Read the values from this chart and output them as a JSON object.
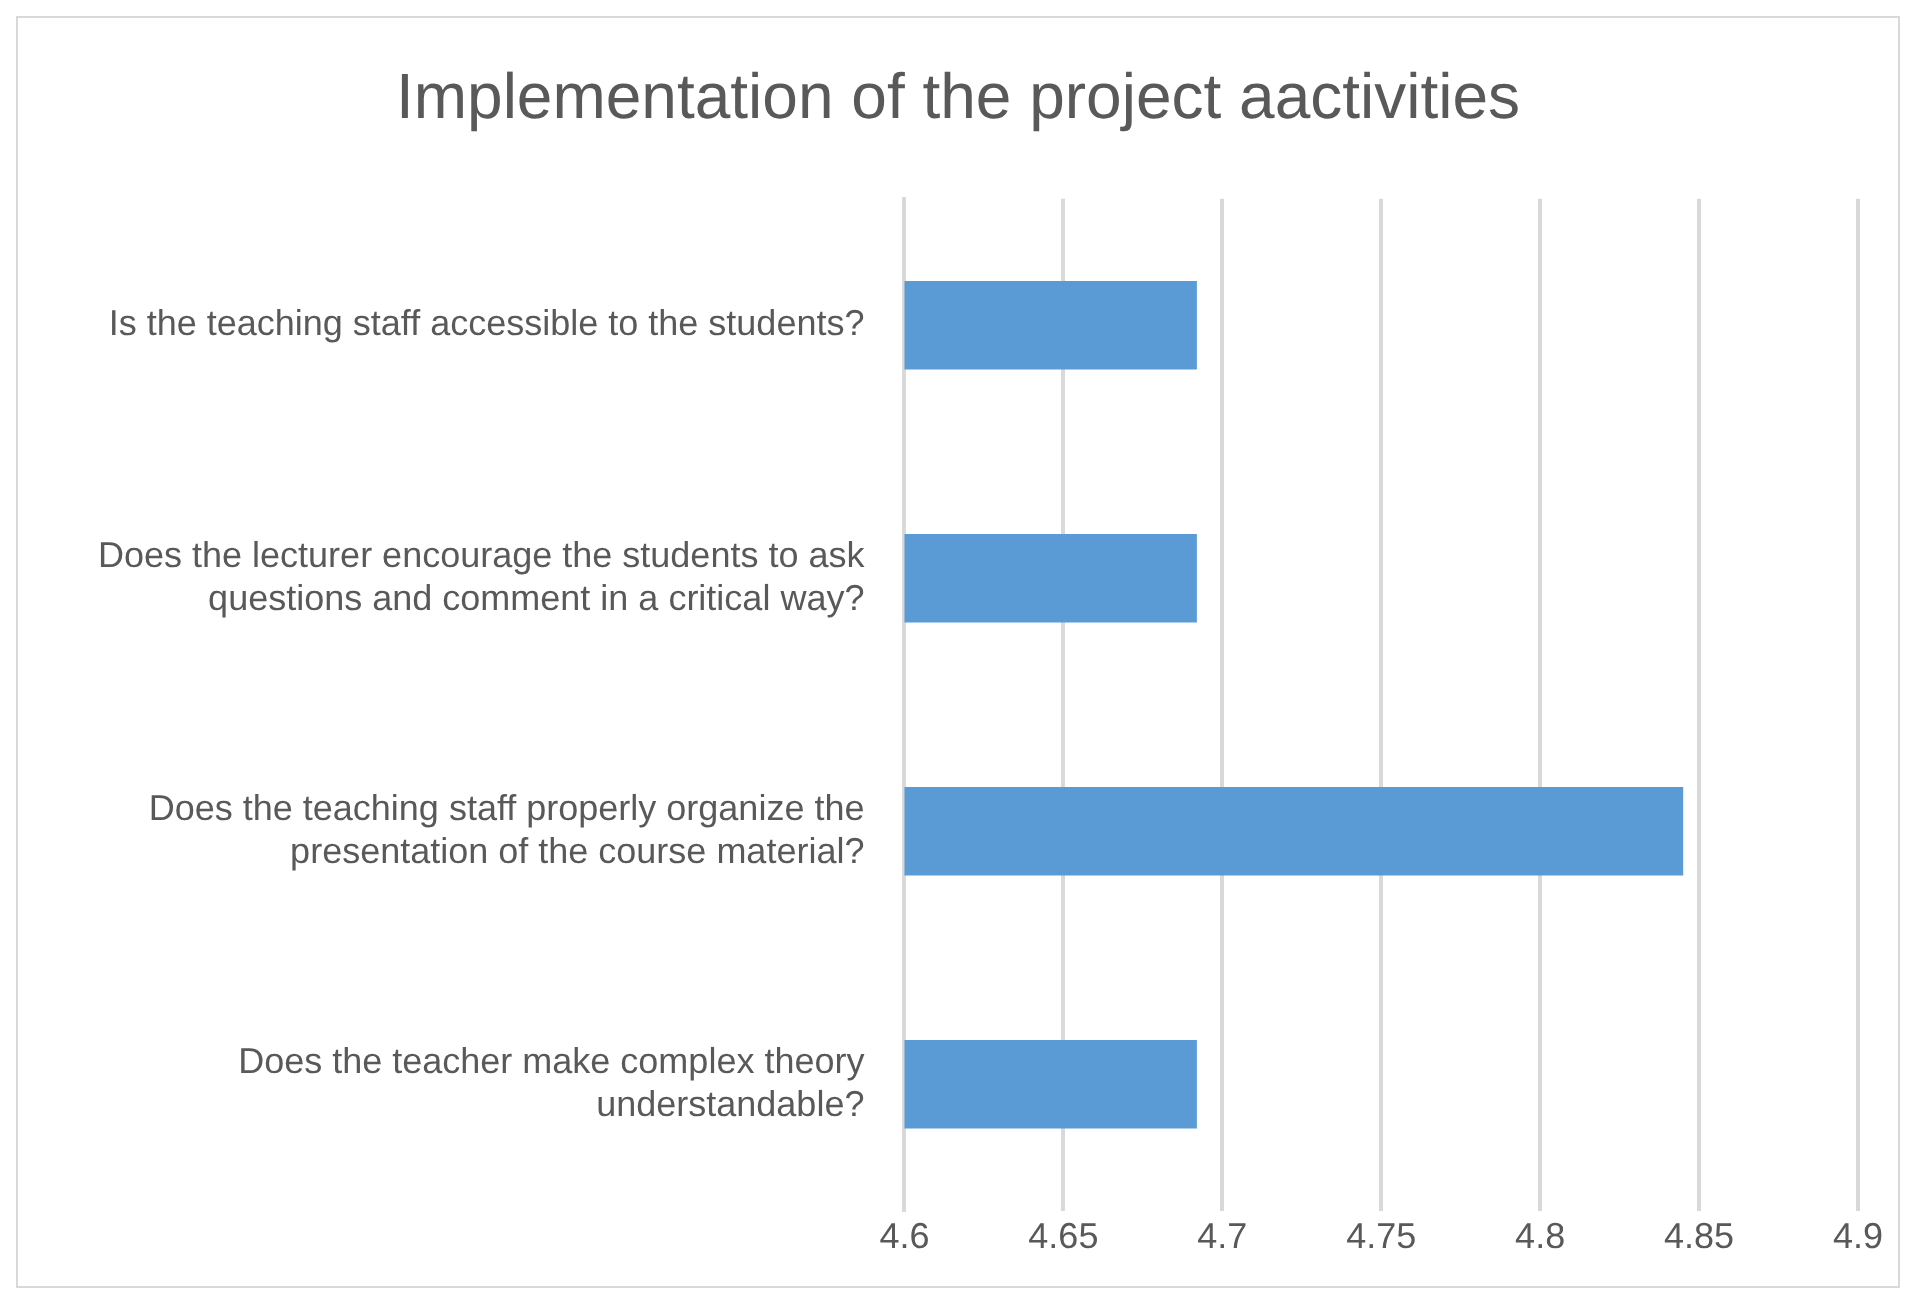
{
  "chart_data": {
    "type": "bar",
    "orientation": "horizontal",
    "title": "Implementation of the project aactivities",
    "categories": [
      "Is the teaching staff accessible to the students?",
      "Does the lecturer encourage the students to ask questions and comment in a critical way?",
      "Does the teaching staff properly organize the presentation of the course material?",
      "Does the teacher make complex theory understandable?"
    ],
    "values": [
      4.692,
      4.692,
      4.845,
      4.692
    ],
    "color": "#5b9bd5",
    "xlim": [
      4.6,
      4.9
    ],
    "xticks": [
      4.6,
      4.65,
      4.7,
      4.75,
      4.8,
      4.85,
      4.9
    ],
    "grid": "x",
    "legend": false
  }
}
